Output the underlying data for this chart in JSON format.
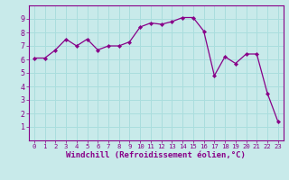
{
  "x": [
    0,
    1,
    2,
    3,
    4,
    5,
    6,
    7,
    8,
    9,
    10,
    11,
    12,
    13,
    14,
    15,
    16,
    17,
    18,
    19,
    20,
    21,
    22,
    23
  ],
  "y": [
    6.1,
    6.1,
    6.7,
    7.5,
    7.0,
    7.5,
    6.7,
    7.0,
    7.0,
    7.3,
    8.4,
    8.7,
    8.6,
    8.8,
    9.1,
    9.1,
    8.1,
    4.8,
    6.2,
    5.7,
    6.4,
    6.4,
    3.5,
    1.4
  ],
  "line_color": "#880088",
  "marker": "D",
  "marker_size": 2.2,
  "linewidth": 0.9,
  "bg_color": "#c8eaea",
  "grid_color": "#aadddd",
  "xlabel": "Windchill (Refroidissement éolien,°C)",
  "xlabel_fontsize": 6.5,
  "tick_color": "#880088",
  "tick_fontsize": 6.0,
  "ylim": [
    0,
    10
  ],
  "xlim": [
    -0.5,
    23.5
  ],
  "yticks": [
    1,
    2,
    3,
    4,
    5,
    6,
    7,
    8,
    9
  ],
  "xticks": [
    0,
    1,
    2,
    3,
    4,
    5,
    6,
    7,
    8,
    9,
    10,
    11,
    12,
    13,
    14,
    15,
    16,
    17,
    18,
    19,
    20,
    21,
    22,
    23
  ]
}
